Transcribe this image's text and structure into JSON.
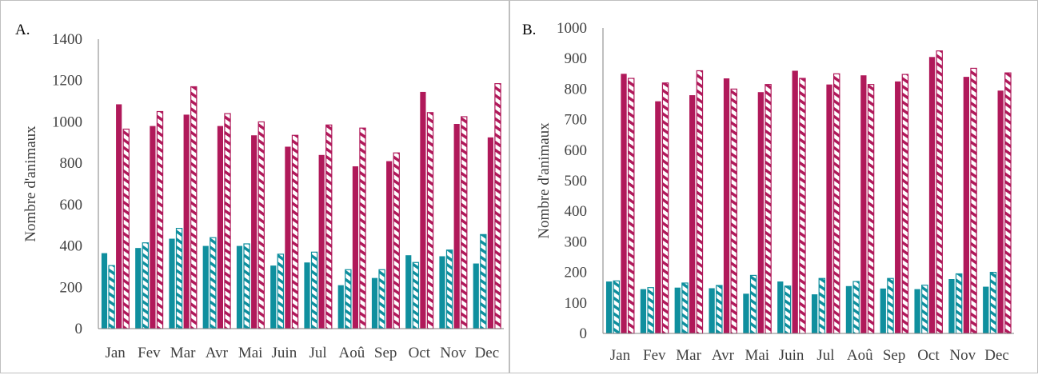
{
  "colors": {
    "teal": "#0f8f9e",
    "magenta": "#b0195a",
    "axis": "#808080",
    "text": "#404040"
  },
  "chart_data": [
    {
      "type": "bar",
      "panel_label": "A.",
      "ylabel": "Nombre d'animaux",
      "ylim": [
        0,
        1400
      ],
      "ytick_step": 200,
      "grid": false,
      "categories": [
        "Jan",
        "Fev",
        "Mar",
        "Avr",
        "Mai",
        "Juin",
        "Jul",
        "Aoû",
        "Sep",
        "Oct",
        "Nov",
        "Dec"
      ],
      "series": [
        {
          "color": "teal",
          "pattern": "solid",
          "values": [
            365,
            390,
            435,
            400,
            400,
            305,
            320,
            210,
            245,
            355,
            350,
            315
          ]
        },
        {
          "color": "teal",
          "pattern": "hatched",
          "values": [
            305,
            415,
            485,
            440,
            410,
            360,
            370,
            285,
            285,
            320,
            380,
            455
          ]
        },
        {
          "color": "magenta",
          "pattern": "solid",
          "values": [
            1085,
            980,
            1035,
            980,
            935,
            880,
            840,
            785,
            810,
            1145,
            990,
            925
          ]
        },
        {
          "color": "magenta",
          "pattern": "hatched",
          "values": [
            965,
            1050,
            1170,
            1040,
            1000,
            935,
            985,
            970,
            850,
            1045,
            1025,
            1185
          ]
        }
      ]
    },
    {
      "type": "bar",
      "panel_label": "B.",
      "ylabel": "Nombre d'animaux",
      "ylim": [
        0,
        1000
      ],
      "ytick_step": 100,
      "grid": false,
      "categories": [
        "Jan",
        "Fev",
        "Mar",
        "Avr",
        "Mai",
        "Juin",
        "Jul",
        "Aoû",
        "Sep",
        "Oct",
        "Nov",
        "Dec"
      ],
      "series": [
        {
          "color": "teal",
          "pattern": "solid",
          "values": [
            170,
            145,
            150,
            148,
            130,
            170,
            128,
            155,
            147,
            145,
            178,
            153
          ]
        },
        {
          "color": "teal",
          "pattern": "hatched",
          "values": [
            172,
            150,
            165,
            157,
            190,
            155,
            180,
            170,
            180,
            158,
            195,
            200
          ]
        },
        {
          "color": "magenta",
          "pattern": "solid",
          "values": [
            850,
            760,
            780,
            835,
            790,
            860,
            815,
            845,
            825,
            905,
            840,
            795
          ]
        },
        {
          "color": "magenta",
          "pattern": "hatched",
          "values": [
            835,
            820,
            860,
            800,
            815,
            835,
            850,
            815,
            848,
            925,
            868,
            853
          ]
        }
      ]
    }
  ]
}
